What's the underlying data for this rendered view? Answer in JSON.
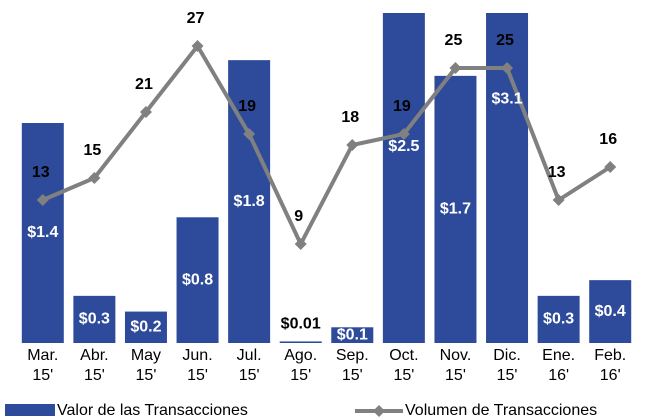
{
  "chart_data": {
    "type": "bar_line",
    "categories": [
      "Mar. 15'",
      "Abr. 15'",
      "May 15'",
      "Jun. 15'",
      "Jul. 15'",
      "Ago. 15'",
      "Sep. 15'",
      "Oct. 15'",
      "Nov. 15'",
      "Dic. 15'",
      "Ene. 16'",
      "Feb. 16'"
    ],
    "series": [
      {
        "name": "Valor de las Transacciones",
        "color": "#2e4b9b",
        "type": "bar",
        "values": [
          1.4,
          0.3,
          0.2,
          0.8,
          1.8,
          0.01,
          0.1,
          2.5,
          1.7,
          3.1,
          0.3,
          0.4
        ],
        "value_labels": [
          "$1.4",
          "$0.3",
          "$0.2",
          "$0.8",
          "$1.8",
          "$0.01",
          "$0.1",
          "$2.5",
          "$1.7",
          "$3.1",
          "$0.3",
          "$0.4"
        ]
      },
      {
        "name": "Volumen de Transacciones",
        "color": "#808080",
        "type": "line",
        "axis": "y2",
        "values": [
          13,
          15,
          21,
          27,
          19,
          9,
          18,
          19,
          25,
          25,
          13,
          16
        ]
      }
    ],
    "ylim": [
      0,
      2.1
    ],
    "y2lim": [
      0,
      30
    ],
    "legend": "bottom"
  }
}
